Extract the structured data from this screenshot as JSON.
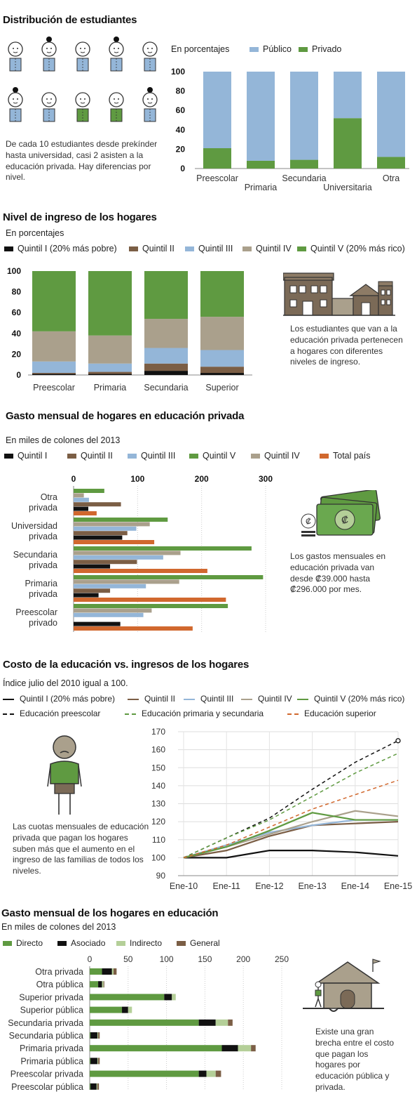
{
  "colors": {
    "publico": "#94b6d8",
    "privado": "#5f9a41",
    "q1": "#111111",
    "q2": "#7b5e45",
    "q3": "#94b6d8",
    "q4": "#aaa08c",
    "q5": "#5f9a41",
    "total": "#d1682e",
    "directo": "#5f9a41",
    "asociado": "#111111",
    "indirecto": "#b4cf98",
    "general": "#7b5e45"
  },
  "s1": {
    "title": "Distribución de estudiantes",
    "subtitle": "En porcentajes",
    "note": "De cada 10 estudiantes desde prekínder hasta universidad, casi 2 asisten a la educación privada. Hay diferencias por nivel.",
    "people_private": 2,
    "people_total": 10
  },
  "s2": {
    "title": "Nivel de ingreso de los hogares",
    "subtitle": "En porcentajes",
    "note": "Los estudiantes que van a la educación privada pertenecen a hogares con diferentes niveles de ingreso."
  },
  "s3": {
    "title": "Gasto mensual de hogares en educación privada",
    "subtitle": "En miles de colones del 2013",
    "note": "Los gastos mensuales en educación privada van desde ₡39.000 hasta ₡296.000 por mes."
  },
  "s4": {
    "title": "Costo de la educación vs. ingresos de los hogares",
    "subtitle": "Índice julio del 2010 igual a 100.",
    "note": "Las cuotas mensuales de educación privada que pagan los hogares suben más que el aumento en el ingreso de las familias de todos los niveles."
  },
  "s5": {
    "title": "Gasto mensual de los hogares en educación",
    "subtitle": "En miles de colones del 2013",
    "note": "Existe una gran brecha entre el costo que pagan los hogares por educación pública y privada."
  },
  "chart_data": [
    {
      "type": "bar",
      "stacked": true,
      "categories": [
        "Preescolar",
        "Primaria",
        "Secundaria",
        "Universitaria",
        "Otra"
      ],
      "series": [
        {
          "name": "Público",
          "values": [
            79,
            92,
            91,
            48,
            88
          ]
        },
        {
          "name": "Privado",
          "values": [
            21,
            8,
            9,
            52,
            12
          ]
        }
      ],
      "ylim": [
        0,
        100
      ],
      "yticks": [
        0,
        20,
        40,
        60,
        80,
        100
      ],
      "legend": "top"
    },
    {
      "type": "bar",
      "stacked": true,
      "categories": [
        "Preescolar",
        "Primaria",
        "Secundaria",
        "Superior"
      ],
      "series": [
        {
          "name": "Quintil I (20% más pobre)",
          "values": [
            1,
            1,
            4,
            2
          ]
        },
        {
          "name": "Quintil II",
          "values": [
            1,
            2,
            7,
            6
          ]
        },
        {
          "name": "Quintil III",
          "values": [
            11,
            8,
            15,
            16
          ]
        },
        {
          "name": "Quintil IV",
          "values": [
            29,
            27,
            28,
            32
          ]
        },
        {
          "name": "Quintil V (20% más rico)",
          "values": [
            58,
            62,
            46,
            44
          ]
        }
      ],
      "ylim": [
        0,
        100
      ],
      "yticks": [
        0,
        20,
        40,
        60,
        80,
        100
      ],
      "legend": "top"
    },
    {
      "type": "bar",
      "orientation": "horizontal",
      "categories": [
        "Otra privada",
        "Universidad privada",
        "Secundaria privada",
        "Primaria privada",
        "Preescolar privado"
      ],
      "category_lines": [
        [
          "Otra",
          "privada"
        ],
        [
          "Universidad",
          "privada"
        ],
        [
          "Secundaria",
          "privada"
        ],
        [
          "Primaria",
          "privada"
        ],
        [
          "Preescolar",
          "privado"
        ]
      ],
      "series": [
        {
          "name": "Quintil V",
          "values": [
            48,
            147,
            278,
            296,
            241
          ]
        },
        {
          "name": "Quintil IV",
          "values": [
            16,
            119,
            167,
            165,
            122
          ]
        },
        {
          "name": "Quintil III",
          "values": [
            24,
            98,
            140,
            113,
            109
          ]
        },
        {
          "name": "Quintil II",
          "values": [
            74,
            84,
            99,
            57,
            0
          ]
        },
        {
          "name": "Quintil I",
          "values": [
            23,
            76,
            57,
            39,
            73
          ]
        },
        {
          "name": "Total país",
          "values": [
            36,
            126,
            209,
            238,
            186
          ]
        }
      ],
      "legend_order": [
        "Quintil I",
        "Quintil II",
        "Quintil III",
        "Quintil V",
        "Quintil IV",
        "Total país"
      ],
      "xlim": [
        0,
        300
      ],
      "xticks": [
        0,
        100,
        200,
        300
      ],
      "legend": "top"
    },
    {
      "type": "line",
      "x": [
        "Ene-10",
        "Ene-11",
        "Ene-12",
        "Ene-13",
        "Ene-14",
        "Ene-15"
      ],
      "series": [
        {
          "name": "Quintil I (20% más pobre)",
          "style": "solid",
          "values": [
            100,
            100,
            104,
            104,
            103,
            101
          ]
        },
        {
          "name": "Quintil II",
          "style": "solid",
          "values": [
            100,
            104,
            112,
            118,
            119,
            120
          ]
        },
        {
          "name": "Quintil III",
          "style": "solid",
          "values": [
            100,
            107,
            114,
            118,
            121,
            121
          ]
        },
        {
          "name": "Quintil IV",
          "style": "solid",
          "values": [
            100,
            106,
            113,
            120,
            126,
            123
          ]
        },
        {
          "name": "Quintil V (20% más rico)",
          "style": "solid",
          "values": [
            100,
            106,
            115,
            125,
            121,
            121
          ]
        },
        {
          "name": "Educación preescolar",
          "style": "dashed",
          "values": [
            100,
            111,
            122,
            138,
            153,
            165
          ]
        },
        {
          "name": "Educación primaria y secundaria",
          "style": "dashed",
          "values": [
            100,
            111,
            121,
            134,
            147,
            158
          ]
        },
        {
          "name": "Educación superior",
          "style": "dashed",
          "values": [
            100,
            107,
            117,
            127,
            135,
            143
          ]
        }
      ],
      "ylim": [
        90,
        170
      ],
      "yticks": [
        90,
        100,
        110,
        120,
        130,
        140,
        150,
        160,
        170
      ],
      "legend": "top"
    },
    {
      "type": "bar",
      "orientation": "horizontal",
      "stacked": true,
      "categories": [
        "Otra privada",
        "Otra pública",
        "Superior privada",
        "Superior pública",
        "Secundaria privada",
        "Secundaria pública",
        "Primaria privada",
        "Primaria pública",
        "Preescolar privada",
        "Preescolar pública"
      ],
      "series": [
        {
          "name": "Directo",
          "values": [
            16,
            11,
            97,
            42,
            142,
            1,
            172,
            1,
            142,
            1
          ]
        },
        {
          "name": "Asociado",
          "values": [
            13,
            5,
            10,
            8,
            22,
            9,
            21,
            9,
            10,
            8
          ]
        },
        {
          "name": "Indirecto",
          "values": [
            2,
            2,
            5,
            5,
            16,
            1,
            17,
            1,
            12,
            1
          ]
        },
        {
          "name": "General",
          "values": [
            4,
            1,
            0,
            0,
            6,
            2,
            6,
            2,
            7,
            2
          ]
        }
      ],
      "xlim": [
        0,
        250
      ],
      "xticks": [
        0,
        50,
        100,
        150,
        200,
        250
      ],
      "legend": "top"
    }
  ]
}
